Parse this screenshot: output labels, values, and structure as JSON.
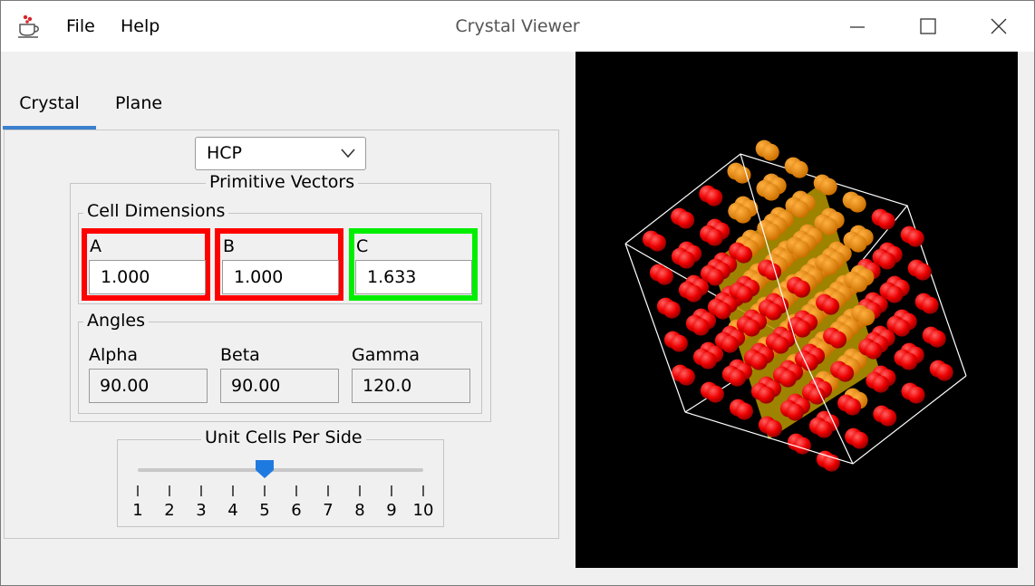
{
  "window": {
    "title": "Crystal Viewer",
    "menu": [
      {
        "label": "File"
      },
      {
        "label": "Help"
      }
    ],
    "app_icon": "java-cup-icon"
  },
  "tabs": [
    {
      "label": "Crystal",
      "active": true
    },
    {
      "label": "Plane",
      "active": false
    }
  ],
  "lattice": {
    "selected": "HCP"
  },
  "primitive_vectors": {
    "title": "Primitive Vectors",
    "cell_dimensions": {
      "title": "Cell Dimensions",
      "a": {
        "label": "A",
        "value": "1.000",
        "border_color": "#ff0000"
      },
      "b": {
        "label": "B",
        "value": "1.000",
        "border_color": "#ff0000"
      },
      "c": {
        "label": "C",
        "value": "1.633",
        "border_color": "#00ee00"
      }
    },
    "angles": {
      "title": "Angles",
      "alpha": {
        "label": "Alpha",
        "value": "90.00"
      },
      "beta": {
        "label": "Beta",
        "value": "90.00"
      },
      "gamma": {
        "label": "Gamma",
        "value": "120.0"
      }
    }
  },
  "unit_cells": {
    "title": "Unit Cells Per Side",
    "value": 5,
    "min": 1,
    "max": 10,
    "ticks": [
      "1",
      "2",
      "3",
      "4",
      "5",
      "6",
      "7",
      "8",
      "9",
      "10"
    ]
  },
  "viewer": {
    "background": "#000000",
    "atom_color": "#ff0000",
    "plane_color": "#c8a800",
    "edge_color": "#ffffff"
  }
}
